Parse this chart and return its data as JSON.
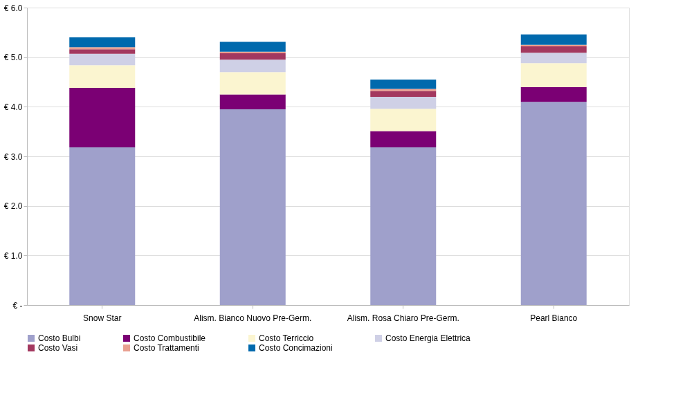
{
  "chart_data": {
    "type": "bar",
    "stacked": true,
    "categories": [
      "Snow Star",
      "Alism. Bianco Nuovo Pre-Germ.",
      "Alism. Rosa Chiaro Pre-Germ.",
      "Pearl Bianco"
    ],
    "series": [
      {
        "name": "Costo Bulbi",
        "color": "#9fa0cb",
        "values": [
          3.18,
          3.95,
          3.18,
          4.1
        ]
      },
      {
        "name": "Costo Combustibile",
        "color": "#7b0074",
        "values": [
          1.2,
          0.3,
          0.33,
          0.3
        ]
      },
      {
        "name": "Costo Terriccio",
        "color": "#fbf5d0",
        "values": [
          0.46,
          0.45,
          0.45,
          0.48
        ]
      },
      {
        "name": "Costo Energia Elettrica",
        "color": "#cfd0e6",
        "values": [
          0.23,
          0.25,
          0.24,
          0.21
        ]
      },
      {
        "name": "Costo Vasi",
        "color": "#a3385f",
        "values": [
          0.09,
          0.13,
          0.12,
          0.13
        ]
      },
      {
        "name": "Costo Trattamenti",
        "color": "#e9a091",
        "values": [
          0.04,
          0.03,
          0.04,
          0.03
        ]
      },
      {
        "name": "Costo Concimazioni",
        "color": "#0069ad",
        "values": [
          0.2,
          0.2,
          0.19,
          0.21
        ]
      }
    ],
    "ylim": [
      0,
      6
    ],
    "yticks": [
      {
        "value": 0,
        "label": "€ -"
      },
      {
        "value": 1,
        "label": "€ 1.0"
      },
      {
        "value": 2,
        "label": "€ 2.0"
      },
      {
        "value": 3,
        "label": "€ 3.0"
      },
      {
        "value": 4,
        "label": "€ 4.0"
      },
      {
        "value": 5,
        "label": "€ 5.0"
      },
      {
        "value": 6,
        "label": "€ 6.0"
      }
    ],
    "grid": "y",
    "legend": "bottom"
  }
}
